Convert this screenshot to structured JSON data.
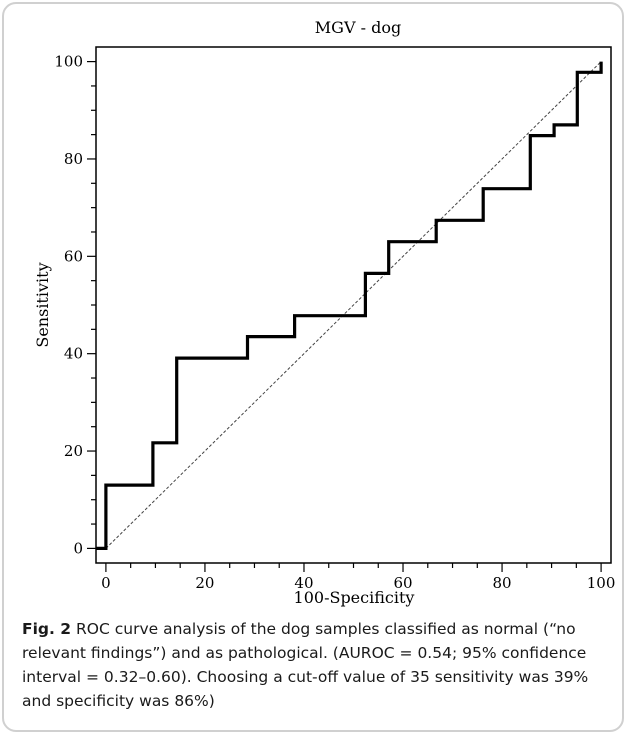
{
  "chart_data": {
    "type": "line",
    "title": "MGV - dog",
    "xlabel": "100-Specificity",
    "ylabel": "Sensitivity",
    "xlim": [
      -2,
      102
    ],
    "ylim": [
      -3,
      103
    ],
    "xticks": [
      0,
      20,
      40,
      60,
      80,
      100
    ],
    "yticks": [
      0,
      20,
      40,
      60,
      80,
      100
    ],
    "grid": false,
    "legend": "none",
    "series": [
      {
        "kind": "step",
        "color": "#000000",
        "points": [
          [
            -2,
            0
          ],
          [
            0,
            0
          ],
          [
            0,
            13
          ],
          [
            9.5,
            13
          ],
          [
            9.5,
            21.7
          ],
          [
            14.3,
            21.7
          ],
          [
            14.3,
            39.1
          ],
          [
            28.6,
            39.1
          ],
          [
            28.6,
            43.5
          ],
          [
            38.1,
            43.5
          ],
          [
            38.1,
            47.8
          ],
          [
            52.4,
            47.8
          ],
          [
            52.4,
            56.5
          ],
          [
            57.1,
            56.5
          ],
          [
            57.1,
            63
          ],
          [
            66.7,
            63
          ],
          [
            66.7,
            67.4
          ],
          [
            76.2,
            67.4
          ],
          [
            76.2,
            73.9
          ],
          [
            85.7,
            73.9
          ],
          [
            85.7,
            84.8
          ],
          [
            90.5,
            84.8
          ],
          [
            90.5,
            87
          ],
          [
            95.2,
            87
          ],
          [
            95.2,
            97.8
          ],
          [
            100,
            97.8
          ],
          [
            100,
            100
          ]
        ]
      },
      {
        "kind": "diagonal",
        "color": "#444444",
        "points": [
          [
            0,
            0
          ],
          [
            100,
            100
          ]
        ]
      }
    ]
  },
  "caption": {
    "label": "Fig. 2",
    "text": " ROC curve analysis of the dog samples classified as normal (“no relevant findings”) and as pathological. (AUROC = 0.54; 95% confidence interval = 0.32–0.60). Choosing a cut-off value of 35 sensitivity was 39% and specificity was 86%)"
  }
}
